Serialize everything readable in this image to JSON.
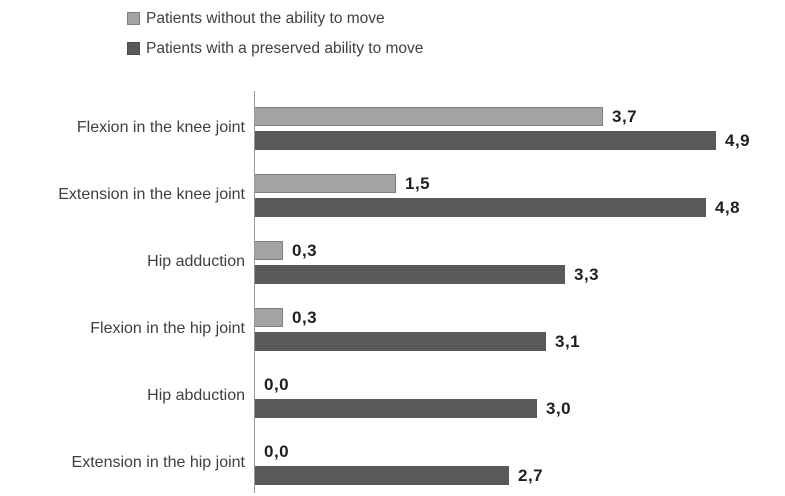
{
  "chart_data": {
    "type": "bar",
    "orientation": "horizontal",
    "title": "",
    "xlabel": "",
    "ylabel": "",
    "categories": [
      "Flexion in the knee joint",
      "Extension in the knee joint",
      "Hip adduction",
      "Flexion in the hip joint",
      "Hip abduction",
      "Extension in the hip joint"
    ],
    "series": [
      {
        "name": "Patients without the ability to move",
        "color": "#a3a3a3",
        "border_color": "#7f7f7f",
        "values": [
          3.7,
          1.5,
          0.3,
          0.3,
          0.0,
          0.0
        ],
        "labels": [
          "3,7",
          "1,5",
          "0,3",
          "0,3",
          "0,0",
          "0,0"
        ]
      },
      {
        "name": "Patients with a preserved ability to move",
        "color": "#595959",
        "border_color": "#595959",
        "values": [
          4.9,
          4.8,
          3.3,
          3.1,
          3.0,
          2.7
        ],
        "labels": [
          "4,9",
          "4,8",
          "3,3",
          "3,1",
          "3,0",
          "2,7"
        ]
      }
    ],
    "xlim": [
      0,
      5
    ],
    "grid": false,
    "legend_position": "top",
    "value_label_format": "comma-decimal",
    "axis_line_color": "#999999"
  }
}
